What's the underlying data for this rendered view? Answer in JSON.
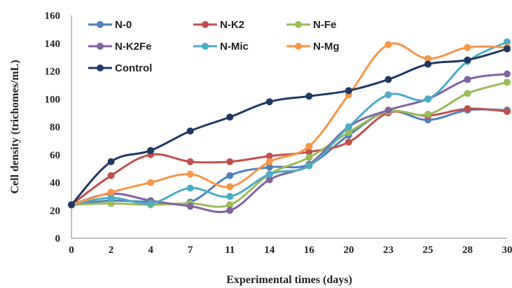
{
  "chart_data": {
    "type": "line",
    "title": "",
    "xlabel": "Experimental times (days)",
    "ylabel": "Cell density (trichomes/mL)",
    "x": [
      "0",
      "2",
      "4",
      "7",
      "11",
      "14",
      "16",
      "20",
      "23",
      "25",
      "28",
      "30"
    ],
    "ylim": [
      0,
      160
    ],
    "yticks": [
      "0",
      "20",
      "40",
      "60",
      "80",
      "100",
      "120",
      "140",
      "160"
    ],
    "grid": false,
    "legend_position": "top-left",
    "series": [
      {
        "name": "N-0",
        "color": "#4f81bd",
        "values": [
          24,
          27,
          26,
          26,
          45,
          51,
          53,
          74,
          91,
          85,
          92,
          92
        ]
      },
      {
        "name": "N-K2",
        "color": "#c0504d",
        "values": [
          24,
          45,
          60,
          55,
          55,
          59,
          62,
          69,
          90,
          88,
          93,
          91
        ]
      },
      {
        "name": "N-Fe",
        "color": "#9bbb59",
        "values": [
          24,
          25,
          24,
          25,
          24,
          46,
          58,
          76,
          91,
          89,
          104,
          112
        ]
      },
      {
        "name": "N-K2Fe",
        "color": "#8064a2",
        "values": [
          24,
          32,
          27,
          23,
          20,
          42,
          53,
          80,
          92,
          100,
          114,
          118
        ]
      },
      {
        "name": "N-Mic",
        "color": "#4bacc6",
        "values": [
          24,
          29,
          25,
          36,
          30,
          46,
          52,
          80,
          103,
          100,
          127,
          141
        ]
      },
      {
        "name": "N-Mg",
        "color": "#f79646",
        "values": [
          24,
          33,
          40,
          46,
          37,
          55,
          66,
          103,
          139,
          129,
          137,
          137
        ]
      },
      {
        "name": "Control",
        "color": "#1f3864",
        "values": [
          24,
          55,
          63,
          77,
          87,
          98,
          102,
          106,
          114,
          125,
          128,
          136
        ]
      }
    ]
  }
}
